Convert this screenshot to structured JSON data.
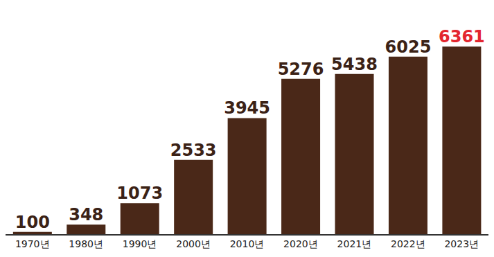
{
  "chart_data": {
    "type": "bar",
    "categories": [
      "1970년",
      "1980년",
      "1990년",
      "2000년",
      "2010년",
      "2020년",
      "2021년",
      "2022년",
      "2023년"
    ],
    "values": [
      100,
      348,
      1073,
      2533,
      3945,
      5276,
      5438,
      6025,
      6361
    ],
    "color": "#4a2818",
    "ylim": [
      0,
      7000
    ],
    "data_labels": true,
    "tick_labels": "x",
    "grid": false
  }
}
